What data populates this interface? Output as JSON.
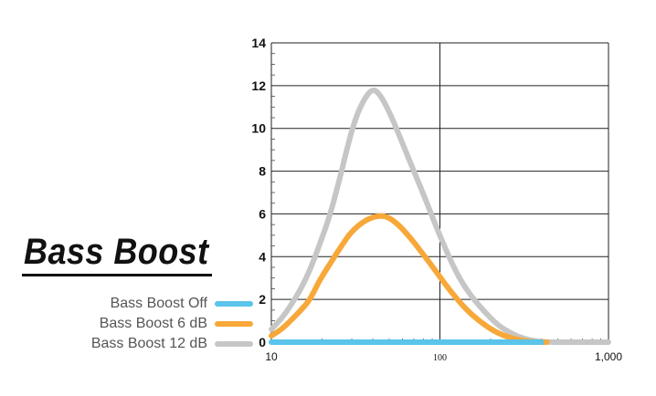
{
  "colors": {
    "off": "#5bc4ea",
    "boost6": "#f7a839",
    "boost12": "#c6c6c6"
  },
  "chart_data": {
    "type": "line",
    "title": "Bass Boost",
    "xlabel": "",
    "ylabel": "",
    "xscale": "log",
    "xlim": [
      10,
      1000
    ],
    "ylim": [
      0,
      14
    ],
    "y_ticks": [
      "0",
      "2",
      "4",
      "6",
      "8",
      "10",
      "12",
      "14"
    ],
    "x_ticks": [
      {
        "value": 10,
        "label": "10"
      },
      {
        "value": 100,
        "label": "100"
      },
      {
        "value": 1000,
        "label": "1,000"
      }
    ],
    "grid": true,
    "legend_placement": "left",
    "series": [
      {
        "name": "Bass Boost Off",
        "color": "#5bc4ea",
        "points": [
          [
            10,
            0
          ],
          [
            20,
            0
          ],
          [
            40,
            0
          ],
          [
            100,
            0
          ],
          [
            200,
            0
          ],
          [
            300,
            0
          ],
          [
            400,
            0
          ]
        ]
      },
      {
        "name": "Bass Boost 6 dB",
        "color": "#f7a839",
        "points": [
          [
            10,
            0.3
          ],
          [
            11.5,
            0.6
          ],
          [
            13,
            1.0
          ],
          [
            15,
            1.5
          ],
          [
            17,
            2.0
          ],
          [
            19,
            2.8
          ],
          [
            22,
            3.6
          ],
          [
            26,
            4.5
          ],
          [
            30,
            5.2
          ],
          [
            36,
            5.7
          ],
          [
            42,
            5.9
          ],
          [
            48,
            5.9
          ],
          [
            55,
            5.6
          ],
          [
            65,
            5.0
          ],
          [
            78,
            4.2
          ],
          [
            95,
            3.3
          ],
          [
            115,
            2.4
          ],
          [
            140,
            1.6
          ],
          [
            170,
            1.0
          ],
          [
            210,
            0.5
          ],
          [
            260,
            0.2
          ],
          [
            320,
            0.05
          ],
          [
            370,
            0
          ],
          [
            430,
            0
          ]
        ]
      },
      {
        "name": "Bass Boost 12 dB",
        "color": "#c6c6c6",
        "points": [
          [
            10,
            0.6
          ],
          [
            11.5,
            1.1
          ],
          [
            13,
            1.7
          ],
          [
            15,
            2.5
          ],
          [
            17,
            3.4
          ],
          [
            19,
            4.4
          ],
          [
            22,
            5.8
          ],
          [
            25,
            7.4
          ],
          [
            28,
            9.0
          ],
          [
            31,
            10.3
          ],
          [
            35,
            11.3
          ],
          [
            40,
            11.9
          ],
          [
            45,
            11.5
          ],
          [
            52,
            10.5
          ],
          [
            60,
            9.3
          ],
          [
            70,
            8.0
          ],
          [
            82,
            6.7
          ],
          [
            95,
            5.4
          ],
          [
            110,
            4.2
          ],
          [
            130,
            3.0
          ],
          [
            155,
            2.1
          ],
          [
            185,
            1.4
          ],
          [
            220,
            0.8
          ],
          [
            265,
            0.4
          ],
          [
            320,
            0.15
          ],
          [
            380,
            0.03
          ],
          [
            450,
            0
          ],
          [
            700,
            0
          ],
          [
            1000,
            0
          ]
        ]
      }
    ]
  }
}
